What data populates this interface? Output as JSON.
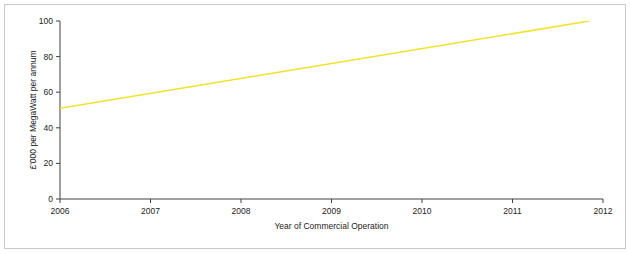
{
  "chart_data": {
    "type": "line",
    "x_label": "Year of Commercial Operation",
    "y_label": "£'000 per MegaWatt per annum",
    "x": [
      2006,
      2011.85
    ],
    "values": [
      51,
      100
    ],
    "color": "#f2e22a",
    "xlim": [
      2006,
      2012
    ],
    "xticks": [
      2006,
      2007,
      2008,
      2009,
      2010,
      2011,
      2012
    ],
    "ylim": [
      0,
      100
    ],
    "yticks": [
      0,
      20,
      40,
      60,
      80,
      100
    ],
    "grid": false
  }
}
